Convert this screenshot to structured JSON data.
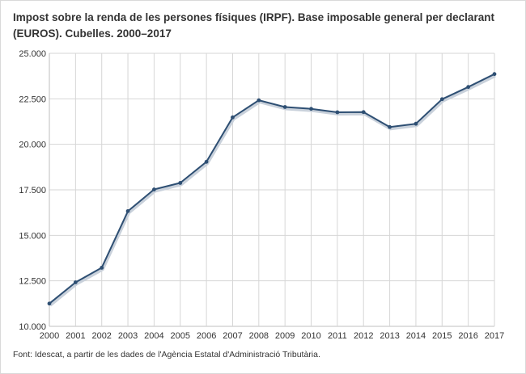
{
  "title": "Impost sobre la renda de les persones físiques (IRPF). Base imposable general per declarant (EUROS). Cubelles. 2000–2017",
  "source": "Font: Idescat, a partir de les dades de l'Agència Estatal d'Administració Tributària.",
  "colors": {
    "line": "#2e4f73",
    "grid": "#d6d6d6",
    "axis": "#bfbfbf",
    "text": "#333333"
  },
  "chart_data": {
    "type": "line",
    "title": "Impost sobre la renda de les persones físiques (IRPF). Base imposable general per declarant (EUROS). Cubelles. 2000–2017",
    "xlabel": "",
    "ylabel": "",
    "x": [
      "2000",
      "2001",
      "2002",
      "2003",
      "2004",
      "2005",
      "2006",
      "2007",
      "2008",
      "2009",
      "2010",
      "2011",
      "2012",
      "2013",
      "2014",
      "2015",
      "2016",
      "2017"
    ],
    "series": [
      {
        "values": [
          11250,
          12420,
          13220,
          16330,
          17520,
          17880,
          19040,
          21480,
          22420,
          22050,
          21950,
          21760,
          21770,
          20950,
          21130,
          22480,
          23150,
          23860
        ]
      }
    ],
    "ylim": [
      10000,
      25000
    ],
    "y_ticks": [
      10000,
      12500,
      15000,
      17500,
      20000,
      22500,
      25000
    ],
    "y_tick_labels": [
      "10.000",
      "12.500",
      "15.000",
      "17.500",
      "20.000",
      "22.500",
      "25.000"
    ],
    "grid": true,
    "legend": "none"
  }
}
